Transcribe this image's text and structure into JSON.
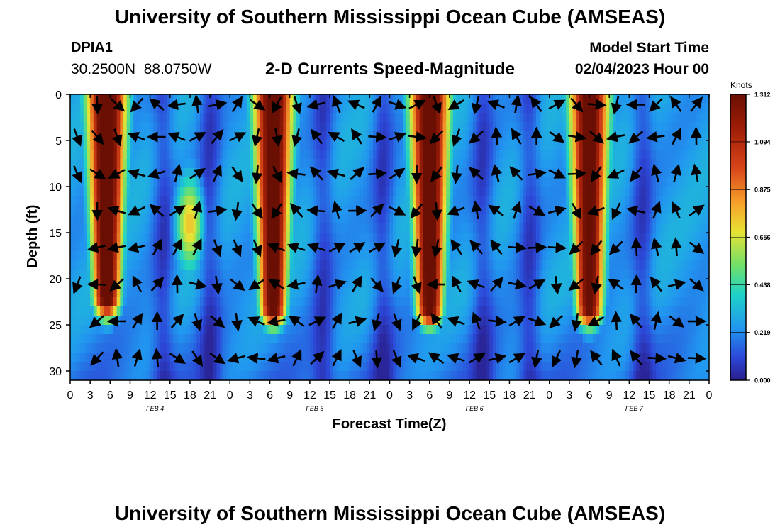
{
  "header": {
    "title": "University of Southern Mississippi Ocean Cube (AMSEAS)",
    "station_id": "DPIA1",
    "coordinates": "30.2500N  88.0750W",
    "subtitle": "2-D Currents Speed-Magnitude",
    "model_start_label": "Model Start Time",
    "model_start_value": "02/04/2023 Hour 00"
  },
  "footer": {
    "title": "University of Southern Mississippi Ocean Cube (AMSEAS)"
  },
  "chart_data": {
    "type": "heatmap",
    "title": "2-D Currents Speed-Magnitude",
    "xlabel": "Forecast Time(Z)",
    "ylabel": "Depth (ft)",
    "x_ticks": [
      "0",
      "3",
      "6",
      "9",
      "12",
      "15",
      "18",
      "21",
      "0",
      "3",
      "6",
      "9",
      "12",
      "15",
      "18",
      "21",
      "0",
      "3",
      "6",
      "9",
      "12",
      "15",
      "18",
      "21",
      "0",
      "3",
      "6",
      "9",
      "12",
      "15",
      "18",
      "21",
      "0"
    ],
    "x_range_hours": [
      0,
      96
    ],
    "date_labels": [
      {
        "label": "FEB 4",
        "hour": 12
      },
      {
        "label": "FEB 5",
        "hour": 36
      },
      {
        "label": "FEB 6",
        "hour": 60
      },
      {
        "label": "FEB 7",
        "hour": 84
      }
    ],
    "y_ticks": [
      0,
      5,
      10,
      15,
      20,
      25,
      30
    ],
    "y_range_ft": [
      0,
      31
    ],
    "colorbar": {
      "label": "Knots",
      "min": 0.0,
      "max": 1.312,
      "tick_labels": [
        "1.312",
        "1.094",
        "0.875",
        "0.656",
        "0.438",
        "0.219",
        "0.000"
      ],
      "tick_values": [
        1.312,
        1.094,
        0.875,
        0.656,
        0.438,
        0.219,
        0.0
      ]
    },
    "speed_maxima": [
      {
        "center_hour": 5.5,
        "peak_knots": 1.3,
        "bottom_depth_ft": 22
      },
      {
        "center_hour": 30.5,
        "peak_knots": 1.25,
        "bottom_depth_ft": 23
      },
      {
        "center_hour": 54.0,
        "peak_knots": 1.25,
        "bottom_depth_ft": 23
      },
      {
        "center_hour": 78.0,
        "peak_knots": 1.2,
        "bottom_depth_ft": 23
      }
    ],
    "secondary_maxima": [
      {
        "center_hour": 18.0,
        "peak_knots": 0.6,
        "depth_range_ft": [
          8,
          20
        ]
      }
    ],
    "vectors": "current direction arrows at 3-hour by ~4-ft grid"
  }
}
